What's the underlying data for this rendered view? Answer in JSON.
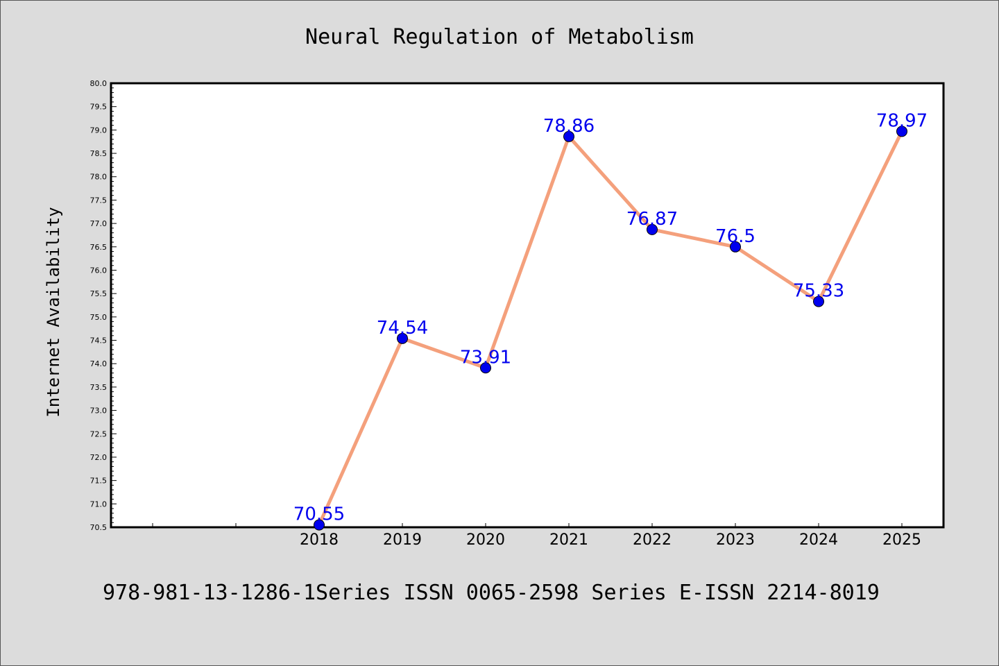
{
  "footer_text": "978-981-13-1286-1Series ISSN 0065-2598 Series E-ISSN 2214-8019",
  "chart_data": {
    "type": "line",
    "title": "Neural Regulation of Metabolism",
    "xlabel": "",
    "ylabel": "Internet Availability",
    "x": [
      "2018",
      "2019",
      "2020",
      "2021",
      "2022",
      "2023",
      "2024",
      "2025"
    ],
    "series": [
      {
        "values": [
          70.55,
          74.54,
          73.91,
          78.86,
          76.87,
          76.5,
          75.33,
          78.97
        ],
        "data_labels": [
          "70.55",
          "74.54",
          "73.91",
          "78.86",
          "76.87",
          "76.5",
          "75.33",
          "78.97"
        ],
        "line_color": "#f4a07c",
        "marker_color": "#0000ee",
        "label_color": "#0000ee"
      }
    ],
    "ylim": [
      70.5,
      80.0
    ],
    "yticks": [
      "70.5",
      "71.0",
      "71.5",
      "72.0",
      "72.5",
      "73.0",
      "73.5",
      "74.0",
      "74.5",
      "75.0",
      "75.5",
      "76.0",
      "76.5",
      "77.0",
      "77.5",
      "78.0",
      "78.5",
      "79.0",
      "79.5",
      "80.0"
    ],
    "grid": false,
    "legend": "none"
  }
}
